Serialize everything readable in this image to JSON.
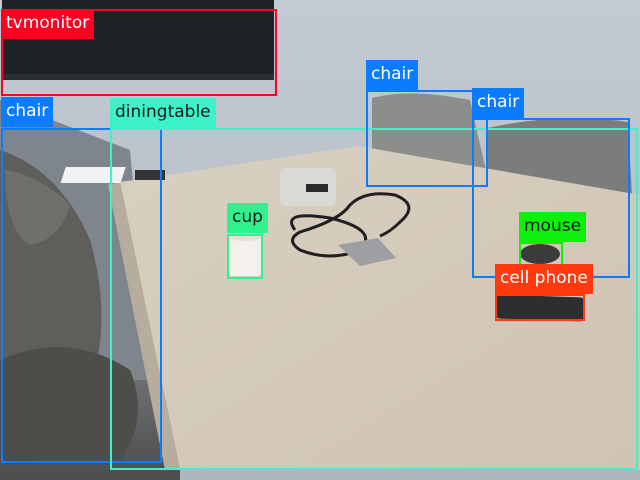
{
  "detections": [
    {
      "label": "tvmonitor",
      "color": "#ff0022",
      "text_color": "#ffffff"
    },
    {
      "label": "chair",
      "color": "#0b7bff",
      "text_color": "#ffffff"
    },
    {
      "label": "diningtable",
      "color": "#3cf2c8",
      "text_color": "#1a1a1a"
    },
    {
      "label": "chair",
      "color": "#0b7bff",
      "text_color": "#ffffff"
    },
    {
      "label": "chair",
      "color": "#0b7bff",
      "text_color": "#ffffff"
    },
    {
      "label": "cup",
      "color": "#2ff28e",
      "text_color": "#1a1a1a"
    },
    {
      "label": "mouse",
      "color": "#0cf00c",
      "text_color": "#1a1a1a"
    },
    {
      "label": "cell phone",
      "color": "#ff3a10",
      "text_color": "#ffffff"
    }
  ]
}
